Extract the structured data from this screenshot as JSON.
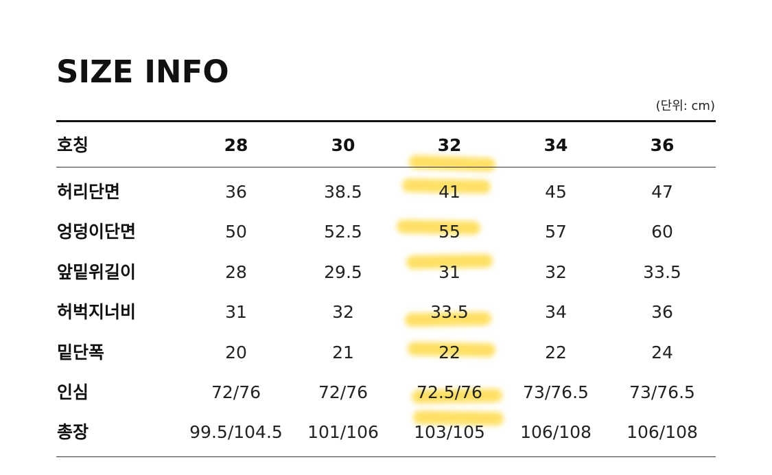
{
  "title": "SIZE INFO",
  "unit_note": "(단위: cm)",
  "table": {
    "header_label": "호칭",
    "sizes": [
      "28",
      "30",
      "32",
      "34",
      "36"
    ],
    "rows": [
      {
        "label": "허리단면",
        "values": [
          "36",
          "38.5",
          "41",
          "45",
          "47"
        ]
      },
      {
        "label": "엉덩이단면",
        "values": [
          "50",
          "52.5",
          "55",
          "57",
          "60"
        ]
      },
      {
        "label": "앞밑위길이",
        "values": [
          "28",
          "29.5",
          "31",
          "32",
          "33.5"
        ]
      },
      {
        "label": "허벅지너비",
        "values": [
          "31",
          "32",
          "33.5",
          "34",
          "36"
        ]
      },
      {
        "label": "밑단폭",
        "values": [
          "20",
          "21",
          "22",
          "22",
          "24"
        ]
      },
      {
        "label": "인심",
        "values": [
          "72/76",
          "72/76",
          "72.5/76",
          "73/76.5",
          "73/76.5"
        ]
      },
      {
        "label": "총장",
        "values": [
          "99.5/104.5",
          "101/106",
          "103/105",
          "106/108",
          "106/108"
        ]
      }
    ],
    "highlighted_size": "32",
    "highlight_color": "#FFD633"
  }
}
